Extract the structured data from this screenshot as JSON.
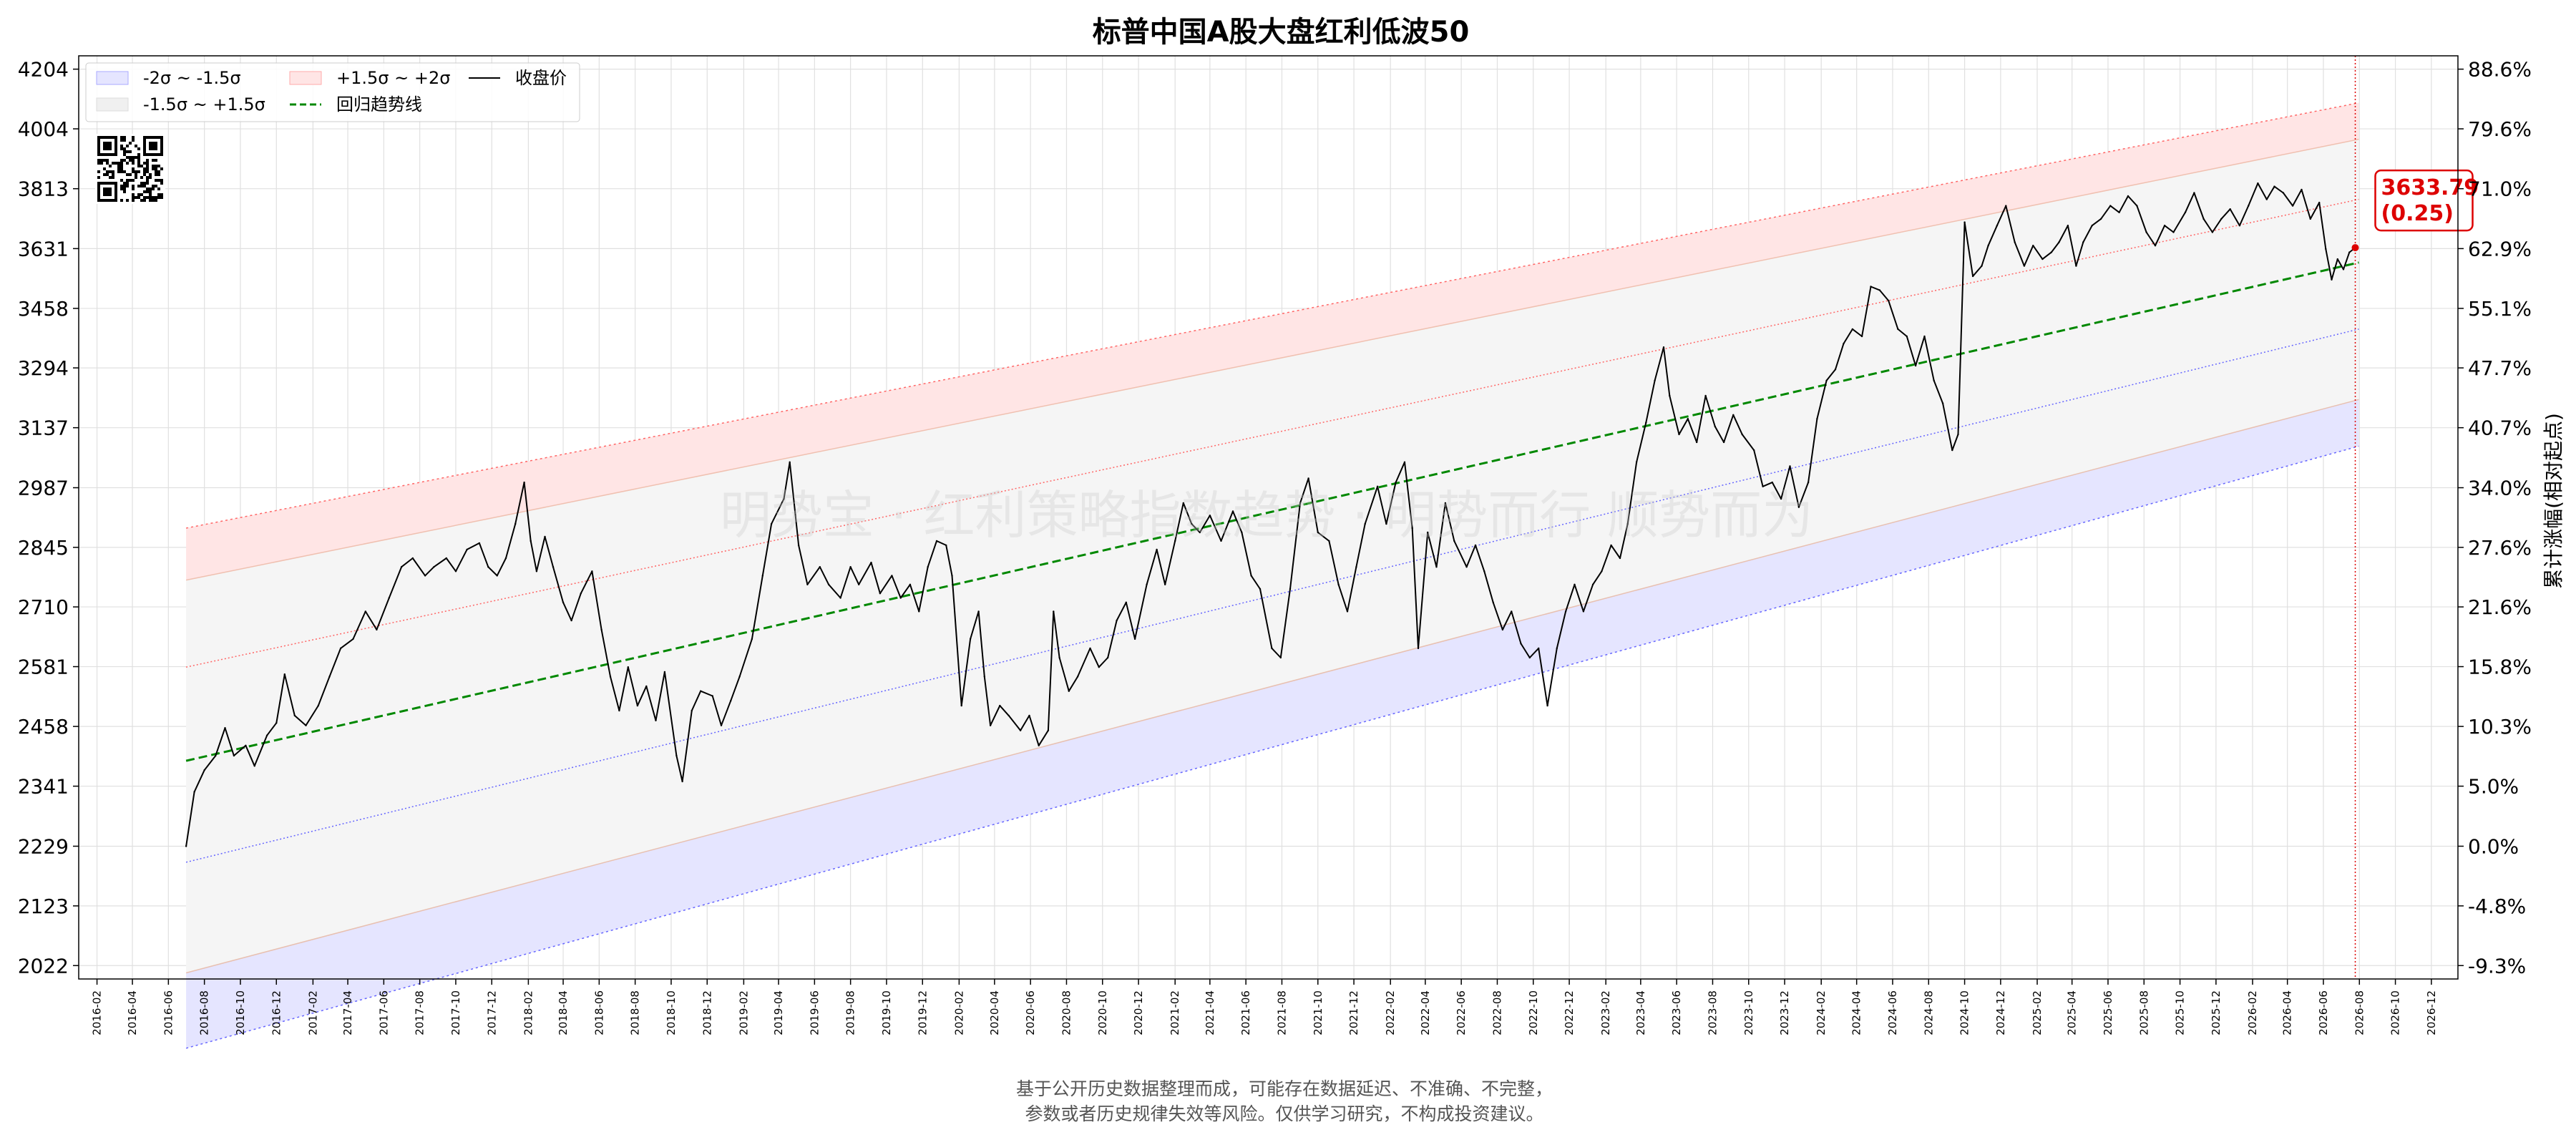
{
  "chart_data": {
    "type": "line",
    "title": "标普中国A股大盘红利低波50",
    "ylabel_right": "累计涨幅(相对起点)",
    "ylim": [
      2000,
      4250
    ],
    "x_range": [
      "2016-01-01",
      "2027-01-15"
    ],
    "y_ticks": [
      2022,
      2123,
      2229,
      2341,
      2458,
      2581,
      2710,
      2845,
      2987,
      3137,
      3294,
      3458,
      3631,
      3813,
      4004,
      4204
    ],
    "y_ticks_right": [
      "-9.3%",
      "-4.8%",
      "0.0%",
      "5.0%",
      "10.3%",
      "15.8%",
      "21.6%",
      "27.6%",
      "34.0%",
      "40.7%",
      "47.7%",
      "55.1%",
      "62.9%",
      "71.0%",
      "79.6%",
      "88.6%"
    ],
    "x_ticks": [
      "2016-02",
      "2016-04",
      "2016-06",
      "2016-08",
      "2016-10",
      "2016-12",
      "2017-02",
      "2017-04",
      "2017-06",
      "2017-08",
      "2017-10",
      "2017-12",
      "2018-02",
      "2018-04",
      "2018-06",
      "2018-08",
      "2018-10",
      "2018-12",
      "2019-02",
      "2019-04",
      "2019-06",
      "2019-08",
      "2019-10",
      "2019-12",
      "2020-02",
      "2020-04",
      "2020-06",
      "2020-08",
      "2020-10",
      "2020-12",
      "2021-02",
      "2021-04",
      "2021-06",
      "2021-08",
      "2021-10",
      "2021-12",
      "2022-02",
      "2022-04",
      "2022-06",
      "2022-08",
      "2022-10",
      "2022-12",
      "2023-02",
      "2023-04",
      "2023-06",
      "2023-08",
      "2023-10",
      "2023-12",
      "2024-02",
      "2024-04",
      "2024-06",
      "2024-08",
      "2024-10",
      "2024-12",
      "2025-02",
      "2025-04",
      "2025-06",
      "2025-08",
      "2025-10",
      "2025-12",
      "2026-02",
      "2026-04",
      "2026-06",
      "2026-08",
      "2026-10",
      "2026-12"
    ],
    "grid": true,
    "legend_position": "top-left",
    "legend": {
      "band_low": "-2σ ~ -1.5σ",
      "band_mid": "-1.5σ ~ +1.5σ",
      "band_high": "+1.5σ ~ +2σ",
      "trend": "回归趋势线",
      "close": "收盘价"
    },
    "trend_line": {
      "start": [
        "2016-07-01",
        2390
      ],
      "end": [
        "2026-07-31",
        3590
      ]
    },
    "band_offsets": {
      "s1_5": 380,
      "s2": 500
    },
    "series": [
      {
        "name": "收盘价",
        "points": [
          [
            "2016-07-01",
            2229
          ],
          [
            "2016-07-15",
            2330
          ],
          [
            "2016-08-01",
            2372
          ],
          [
            "2016-08-20",
            2400
          ],
          [
            "2016-09-05",
            2455
          ],
          [
            "2016-09-20",
            2400
          ],
          [
            "2016-10-10",
            2420
          ],
          [
            "2016-10-25",
            2380
          ],
          [
            "2016-11-15",
            2440
          ],
          [
            "2016-12-01",
            2465
          ],
          [
            "2016-12-15",
            2565
          ],
          [
            "2017-01-01",
            2480
          ],
          [
            "2017-01-20",
            2460
          ],
          [
            "2017-02-10",
            2500
          ],
          [
            "2017-03-01",
            2560
          ],
          [
            "2017-03-20",
            2620
          ],
          [
            "2017-04-10",
            2640
          ],
          [
            "2017-05-01",
            2700
          ],
          [
            "2017-05-20",
            2660
          ],
          [
            "2017-06-10",
            2730
          ],
          [
            "2017-07-01",
            2800
          ],
          [
            "2017-07-20",
            2820
          ],
          [
            "2017-08-10",
            2780
          ],
          [
            "2017-08-25",
            2800
          ],
          [
            "2017-09-15",
            2820
          ],
          [
            "2017-10-01",
            2790
          ],
          [
            "2017-10-20",
            2840
          ],
          [
            "2017-11-10",
            2855
          ],
          [
            "2017-11-25",
            2800
          ],
          [
            "2017-12-10",
            2780
          ],
          [
            "2017-12-25",
            2820
          ],
          [
            "2018-01-10",
            2900
          ],
          [
            "2018-01-25",
            3000
          ],
          [
            "2018-02-05",
            2860
          ],
          [
            "2018-02-15",
            2790
          ],
          [
            "2018-03-01",
            2870
          ],
          [
            "2018-03-15",
            2800
          ],
          [
            "2018-04-01",
            2720
          ],
          [
            "2018-04-15",
            2680
          ],
          [
            "2018-05-01",
            2740
          ],
          [
            "2018-05-20",
            2790
          ],
          [
            "2018-06-05",
            2660
          ],
          [
            "2018-06-20",
            2560
          ],
          [
            "2018-07-05",
            2490
          ],
          [
            "2018-07-20",
            2580
          ],
          [
            "2018-08-05",
            2500
          ],
          [
            "2018-08-20",
            2540
          ],
          [
            "2018-09-05",
            2470
          ],
          [
            "2018-09-20",
            2570
          ],
          [
            "2018-10-10",
            2400
          ],
          [
            "2018-10-20",
            2350
          ],
          [
            "2018-11-05",
            2490
          ],
          [
            "2018-11-20",
            2530
          ],
          [
            "2018-12-10",
            2520
          ],
          [
            "2018-12-25",
            2460
          ],
          [
            "2019-01-10",
            2510
          ],
          [
            "2019-01-25",
            2560
          ],
          [
            "2019-02-15",
            2640
          ],
          [
            "2019-03-05",
            2780
          ],
          [
            "2019-03-20",
            2900
          ],
          [
            "2019-04-10",
            2960
          ],
          [
            "2019-04-20",
            3050
          ],
          [
            "2019-05-05",
            2850
          ],
          [
            "2019-05-20",
            2760
          ],
          [
            "2019-06-10",
            2800
          ],
          [
            "2019-06-25",
            2760
          ],
          [
            "2019-07-15",
            2730
          ],
          [
            "2019-08-01",
            2800
          ],
          [
            "2019-08-15",
            2760
          ],
          [
            "2019-09-05",
            2810
          ],
          [
            "2019-09-20",
            2740
          ],
          [
            "2019-10-10",
            2780
          ],
          [
            "2019-10-25",
            2730
          ],
          [
            "2019-11-10",
            2760
          ],
          [
            "2019-11-25",
            2700
          ],
          [
            "2019-12-10",
            2800
          ],
          [
            "2019-12-25",
            2860
          ],
          [
            "2020-01-10",
            2850
          ],
          [
            "2020-01-20",
            2780
          ],
          [
            "2020-02-05",
            2500
          ],
          [
            "2020-02-20",
            2640
          ],
          [
            "2020-03-05",
            2700
          ],
          [
            "2020-03-15",
            2560
          ],
          [
            "2020-03-25",
            2460
          ],
          [
            "2020-04-10",
            2500
          ],
          [
            "2020-04-25",
            2480
          ],
          [
            "2020-05-15",
            2450
          ],
          [
            "2020-05-30",
            2480
          ],
          [
            "2020-06-15",
            2420
          ],
          [
            "2020-07-01",
            2450
          ],
          [
            "2020-07-10",
            2700
          ],
          [
            "2020-07-20",
            2600
          ],
          [
            "2020-08-05",
            2530
          ],
          [
            "2020-08-20",
            2560
          ],
          [
            "2020-09-10",
            2620
          ],
          [
            "2020-09-25",
            2580
          ],
          [
            "2020-10-10",
            2600
          ],
          [
            "2020-10-25",
            2680
          ],
          [
            "2020-11-10",
            2720
          ],
          [
            "2020-11-25",
            2640
          ],
          [
            "2020-12-15",
            2760
          ],
          [
            "2021-01-01",
            2840
          ],
          [
            "2021-01-15",
            2760
          ],
          [
            "2021-02-01",
            2860
          ],
          [
            "2021-02-15",
            2950
          ],
          [
            "2021-03-01",
            2900
          ],
          [
            "2021-03-15",
            2880
          ],
          [
            "2021-04-01",
            2920
          ],
          [
            "2021-04-20",
            2860
          ],
          [
            "2021-05-10",
            2930
          ],
          [
            "2021-05-25",
            2880
          ],
          [
            "2021-06-10",
            2780
          ],
          [
            "2021-06-25",
            2750
          ],
          [
            "2021-07-15",
            2620
          ],
          [
            "2021-07-30",
            2600
          ],
          [
            "2021-08-15",
            2750
          ],
          [
            "2021-09-01",
            2950
          ],
          [
            "2021-09-15",
            3010
          ],
          [
            "2021-10-01",
            2880
          ],
          [
            "2021-10-20",
            2860
          ],
          [
            "2021-11-05",
            2760
          ],
          [
            "2021-11-20",
            2700
          ],
          [
            "2021-12-05",
            2800
          ],
          [
            "2021-12-20",
            2900
          ],
          [
            "2022-01-10",
            2990
          ],
          [
            "2022-01-25",
            2900
          ],
          [
            "2022-02-10",
            3000
          ],
          [
            "2022-02-25",
            3050
          ],
          [
            "2022-03-10",
            2890
          ],
          [
            "2022-03-20",
            2620
          ],
          [
            "2022-04-05",
            2880
          ],
          [
            "2022-04-20",
            2800
          ],
          [
            "2022-05-05",
            2950
          ],
          [
            "2022-05-20",
            2860
          ],
          [
            "2022-06-10",
            2800
          ],
          [
            "2022-06-25",
            2850
          ],
          [
            "2022-07-10",
            2790
          ],
          [
            "2022-07-25",
            2720
          ],
          [
            "2022-08-10",
            2660
          ],
          [
            "2022-08-25",
            2700
          ],
          [
            "2022-09-10",
            2630
          ],
          [
            "2022-09-25",
            2600
          ],
          [
            "2022-10-10",
            2620
          ],
          [
            "2022-10-25",
            2500
          ],
          [
            "2022-11-10",
            2620
          ],
          [
            "2022-11-25",
            2700
          ],
          [
            "2022-12-10",
            2760
          ],
          [
            "2022-12-25",
            2700
          ],
          [
            "2023-01-10",
            2760
          ],
          [
            "2023-01-25",
            2790
          ],
          [
            "2023-02-10",
            2850
          ],
          [
            "2023-02-25",
            2820
          ],
          [
            "2023-03-10",
            2900
          ],
          [
            "2023-03-25",
            3050
          ],
          [
            "2023-04-10",
            3150
          ],
          [
            "2023-04-25",
            3260
          ],
          [
            "2023-05-10",
            3350
          ],
          [
            "2023-05-20",
            3220
          ],
          [
            "2023-06-05",
            3120
          ],
          [
            "2023-06-20",
            3160
          ],
          [
            "2023-07-05",
            3100
          ],
          [
            "2023-07-20",
            3220
          ],
          [
            "2023-08-05",
            3140
          ],
          [
            "2023-08-20",
            3100
          ],
          [
            "2023-09-05",
            3170
          ],
          [
            "2023-09-20",
            3120
          ],
          [
            "2023-10-10",
            3080
          ],
          [
            "2023-10-25",
            2990
          ],
          [
            "2023-11-10",
            3000
          ],
          [
            "2023-11-25",
            2960
          ],
          [
            "2023-12-10",
            3040
          ],
          [
            "2023-12-25",
            2940
          ],
          [
            "2024-01-10",
            3000
          ],
          [
            "2024-01-25",
            3160
          ],
          [
            "2024-02-10",
            3260
          ],
          [
            "2024-02-25",
            3290
          ],
          [
            "2024-03-10",
            3360
          ],
          [
            "2024-03-25",
            3400
          ],
          [
            "2024-04-10",
            3380
          ],
          [
            "2024-04-25",
            3520
          ],
          [
            "2024-05-10",
            3510
          ],
          [
            "2024-05-25",
            3480
          ],
          [
            "2024-06-10",
            3400
          ],
          [
            "2024-06-25",
            3380
          ],
          [
            "2024-07-10",
            3300
          ],
          [
            "2024-07-25",
            3380
          ],
          [
            "2024-08-10",
            3260
          ],
          [
            "2024-08-25",
            3200
          ],
          [
            "2024-09-10",
            3080
          ],
          [
            "2024-09-20",
            3120
          ],
          [
            "2024-10-01",
            3710
          ],
          [
            "2024-10-15",
            3550
          ],
          [
            "2024-10-30",
            3580
          ],
          [
            "2024-11-10",
            3640
          ],
          [
            "2024-11-25",
            3700
          ],
          [
            "2024-12-10",
            3760
          ],
          [
            "2024-12-25",
            3650
          ],
          [
            "2025-01-10",
            3580
          ],
          [
            "2025-01-25",
            3640
          ],
          [
            "2025-02-10",
            3600
          ],
          [
            "2025-02-25",
            3620
          ],
          [
            "2025-03-10",
            3650
          ],
          [
            "2025-03-25",
            3700
          ],
          [
            "2025-04-08",
            3580
          ],
          [
            "2025-04-20",
            3650
          ],
          [
            "2025-05-05",
            3700
          ],
          [
            "2025-05-20",
            3720
          ],
          [
            "2025-06-05",
            3760
          ],
          [
            "2025-06-20",
            3740
          ],
          [
            "2025-07-05",
            3790
          ],
          [
            "2025-07-20",
            3760
          ],
          [
            "2025-08-05",
            3680
          ],
          [
            "2025-08-20",
            3640
          ],
          [
            "2025-09-05",
            3700
          ],
          [
            "2025-09-20",
            3680
          ],
          [
            "2025-10-10",
            3740
          ],
          [
            "2025-10-25",
            3800
          ],
          [
            "2025-11-10",
            3720
          ],
          [
            "2025-11-25",
            3680
          ],
          [
            "2025-12-10",
            3720
          ],
          [
            "2025-12-25",
            3750
          ],
          [
            "2026-01-10",
            3700
          ],
          [
            "2026-01-25",
            3760
          ],
          [
            "2026-02-10",
            3830
          ],
          [
            "2026-02-25",
            3780
          ],
          [
            "2026-03-10",
            3820
          ],
          [
            "2026-03-25",
            3800
          ],
          [
            "2026-04-10",
            3760
          ],
          [
            "2026-04-25",
            3810
          ],
          [
            "2026-05-10",
            3720
          ],
          [
            "2026-05-25",
            3770
          ],
          [
            "2026-06-05",
            3630
          ],
          [
            "2026-06-15",
            3540
          ],
          [
            "2026-06-25",
            3600
          ],
          [
            "2026-07-05",
            3570
          ],
          [
            "2026-07-15",
            3620
          ],
          [
            "2026-07-25",
            3633.79
          ]
        ]
      }
    ],
    "annotation": {
      "date": "2026-07-25",
      "value_label": "3633.79",
      "sigma_label": "(0.25)"
    },
    "watermark": "明势宝 · 红利策略指数趋势 · 明势而行 顺势而为",
    "footer": [
      "基于公开历史数据整理而成，可能存在数据延迟、不准确、不完整，",
      "参数或者历史规律失效等风险。仅供学习研究，不构成投资建议。"
    ],
    "colors": {
      "band_low_fill": "#e5e5ff",
      "band_mid_fill": "#f5f5f5",
      "band_high_fill": "#ffe5e5",
      "trend": "#008800",
      "close": "#000000",
      "sigma_low_line": "#6666ff",
      "sigma_high_line": "#ff6666",
      "annotation": "#dd0000"
    }
  }
}
